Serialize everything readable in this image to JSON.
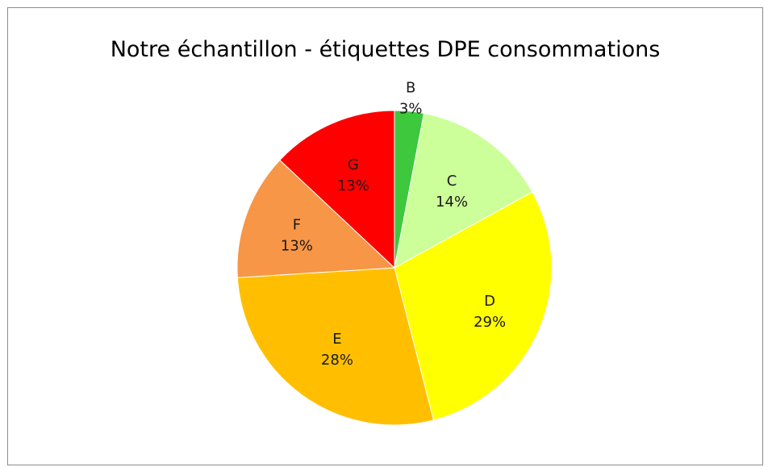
{
  "chart_data": {
    "type": "pie",
    "title": "Notre échantillon - étiquettes DPE consommations",
    "slices": [
      {
        "label": "B",
        "value": 3,
        "pct_text": "3%",
        "color": "#3dc83d"
      },
      {
        "label": "C",
        "value": 14,
        "pct_text": "14%",
        "color": "#ccff99"
      },
      {
        "label": "D",
        "value": 29,
        "pct_text": "29%",
        "color": "#ffff00"
      },
      {
        "label": "E",
        "value": 28,
        "pct_text": "28%",
        "color": "#ffbf00"
      },
      {
        "label": "F",
        "value": 13,
        "pct_text": "13%",
        "color": "#f79646"
      },
      {
        "label": "G",
        "value": 13,
        "pct_text": "13%",
        "color": "#ff0000"
      }
    ]
  }
}
